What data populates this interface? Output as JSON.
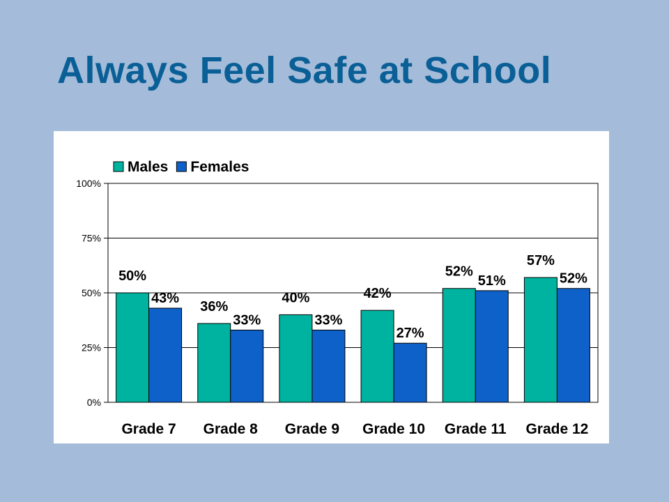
{
  "slide": {
    "title": "Always Feel Safe at School"
  },
  "chart_data": {
    "type": "bar",
    "title": "",
    "xlabel": "",
    "ylabel": "",
    "categories": [
      "Grade 7",
      "Grade 8",
      "Grade 9",
      "Grade 10",
      "Grade 11",
      "Grade 12"
    ],
    "series": [
      {
        "name": "Males",
        "values": [
          50,
          36,
          40,
          42,
          52,
          57
        ],
        "color": "#00b3a0"
      },
      {
        "name": "Females",
        "values": [
          43,
          33,
          33,
          27,
          51,
          52
        ],
        "color": "#0e61c9"
      }
    ],
    "ylim": [
      0,
      100
    ],
    "yticks": [
      0,
      25,
      50,
      75,
      100
    ],
    "ytick_labels": [
      "0%",
      "25%",
      "50%",
      "75%",
      "100%"
    ],
    "value_suffix": "%",
    "grid": true,
    "legend": "top-left"
  }
}
